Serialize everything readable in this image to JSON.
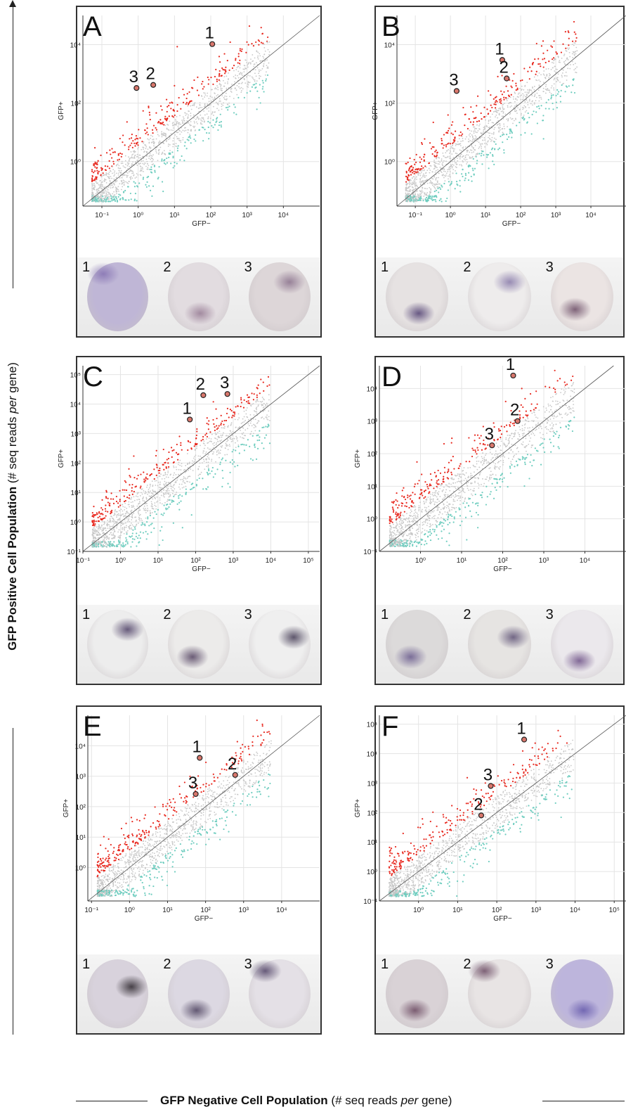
{
  "figure": {
    "y_axis_title": {
      "bold": "GFP Positive Cell Population",
      "rest_a": " (# seq reads ",
      "italic": "per",
      "rest_b": " gene)"
    },
    "x_axis_title": {
      "bold": "GFP Negative Cell Population",
      "rest_a": " (# seq reads ",
      "italic": "per",
      "rest_b": " gene)"
    },
    "colors": {
      "enriched": "#e8291f",
      "depleted": "#6fcdbf",
      "neutral": "#c8c8c8",
      "highlight": "#222222"
    }
  },
  "chart_data": [
    {
      "panel": "A",
      "type": "scatter",
      "xlabel": "GFP−",
      "ylabel": "GFP+",
      "xticks": [
        "10⁻¹",
        "10⁰",
        "10¹",
        "10²",
        "10³",
        "10⁴"
      ],
      "yticks": [
        "10⁰",
        "10²",
        "10⁴"
      ],
      "xlim": [
        0.03,
        100000
      ],
      "ylim": [
        0.03,
        100000
      ],
      "log": true,
      "annotations": [
        {
          "label": "1",
          "x": 110,
          "y": 10500
        },
        {
          "label": "2",
          "x": 2.6,
          "y": 420
        },
        {
          "label": "3",
          "x": 0.9,
          "y": 330
        }
      ],
      "embryo_labels": [
        "1",
        "2",
        "3"
      ]
    },
    {
      "panel": "B",
      "type": "scatter",
      "xlabel": "GFP−",
      "ylabel": "GFP+",
      "xticks": [
        "10⁻¹",
        "10⁰",
        "10¹",
        "10²",
        "10³",
        "10⁴"
      ],
      "yticks": [
        "10⁰",
        "10²",
        "10⁴"
      ],
      "xlim": [
        0.03,
        100000
      ],
      "ylim": [
        0.03,
        100000
      ],
      "log": true,
      "annotations": [
        {
          "label": "1",
          "x": 30,
          "y": 3000
        },
        {
          "label": "2",
          "x": 40,
          "y": 700
        },
        {
          "label": "3",
          "x": 1.5,
          "y": 260
        }
      ],
      "embryo_labels": [
        "1",
        "2",
        "3"
      ]
    },
    {
      "panel": "C",
      "type": "scatter",
      "xlabel": "GFP−",
      "ylabel": "GFP+",
      "xticks": [
        "10⁻¹",
        "10⁰",
        "10¹",
        "10²",
        "10³",
        "10⁴",
        "10⁵"
      ],
      "yticks": [
        "10⁻¹",
        "10⁰",
        "10¹",
        "10²",
        "10³",
        "10⁴",
        "10⁵"
      ],
      "xlim": [
        0.1,
        200000
      ],
      "ylim": [
        0.1,
        200000
      ],
      "log": true,
      "annotations": [
        {
          "label": "1",
          "x": 70,
          "y": 3000
        },
        {
          "label": "2",
          "x": 160,
          "y": 20000
        },
        {
          "label": "3",
          "x": 700,
          "y": 22000
        }
      ],
      "embryo_labels": [
        "1",
        "2",
        "3"
      ]
    },
    {
      "panel": "D",
      "type": "scatter",
      "xlabel": "GFP−",
      "ylabel": "GFP+",
      "xticks": [
        "10⁰",
        "10¹",
        "10²",
        "10³",
        "10⁴"
      ],
      "yticks": [
        "10⁻¹",
        "10⁰",
        "10¹",
        "10²",
        "10³",
        "10⁴"
      ],
      "xlim": [
        0.1,
        100000
      ],
      "ylim": [
        0.1,
        50000
      ],
      "log": true,
      "annotations": [
        {
          "label": "1",
          "x": 180,
          "y": 25000
        },
        {
          "label": "2",
          "x": 230,
          "y": 1000
        },
        {
          "label": "3",
          "x": 55,
          "y": 180
        }
      ],
      "embryo_labels": [
        "1",
        "2",
        "3"
      ]
    },
    {
      "panel": "E",
      "type": "scatter",
      "xlabel": "GFP−",
      "ylabel": "GFP+",
      "xticks": [
        "10⁻¹",
        "10⁰",
        "10¹",
        "10²",
        "10³",
        "10⁴"
      ],
      "yticks": [
        "10⁰",
        "10¹",
        "10²",
        "10³",
        "10⁴"
      ],
      "xlim": [
        0.08,
        100000
      ],
      "ylim": [
        0.08,
        100000
      ],
      "log": true,
      "annotations": [
        {
          "label": "1",
          "x": 70,
          "y": 4000
        },
        {
          "label": "2",
          "x": 600,
          "y": 1100
        },
        {
          "label": "3",
          "x": 55,
          "y": 260
        }
      ],
      "embryo_labels": [
        "1",
        "2",
        "3"
      ]
    },
    {
      "panel": "F",
      "type": "scatter",
      "xlabel": "GFP−",
      "ylabel": "GFP+",
      "xticks": [
        "10⁰",
        "10¹",
        "10²",
        "10³",
        "10⁴",
        "10⁵"
      ],
      "yticks": [
        "10⁻¹",
        "10⁰",
        "10¹",
        "10²",
        "10³",
        "10⁴",
        "10⁵"
      ],
      "xlim": [
        0.1,
        200000
      ],
      "ylim": [
        0.1,
        200000
      ],
      "log": true,
      "annotations": [
        {
          "label": "1",
          "x": 500,
          "y": 30000
        },
        {
          "label": "2",
          "x": 40,
          "y": 80
        },
        {
          "label": "3",
          "x": 70,
          "y": 800
        }
      ],
      "embryo_labels": [
        "1",
        "2",
        "3"
      ]
    }
  ]
}
